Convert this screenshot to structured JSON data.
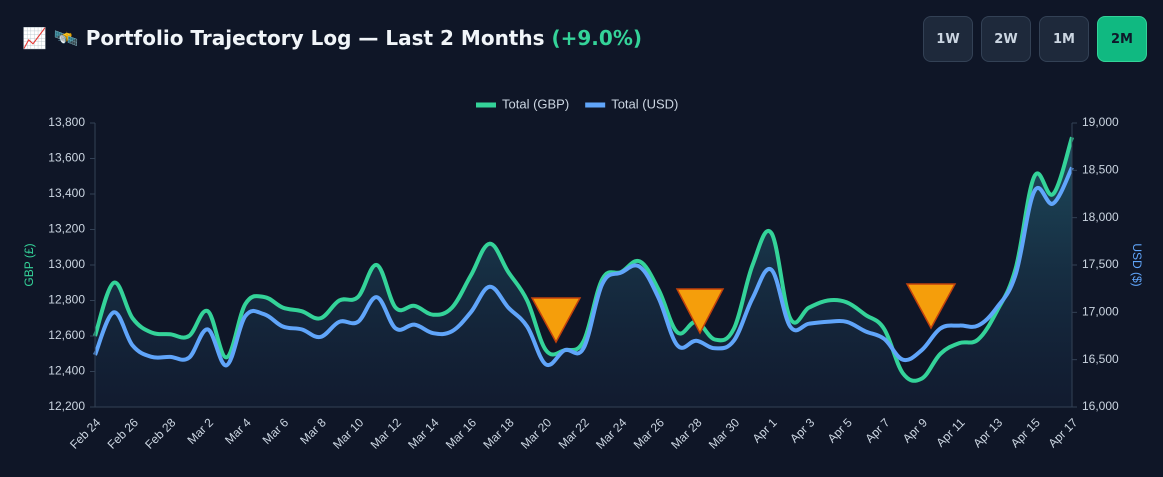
{
  "header": {
    "title": "📈 🛰️ Portfolio Trajectory Log — Last 2 Months",
    "change": "(+9.0%)",
    "ranges": [
      "1W",
      "2W",
      "1M",
      "2M"
    ],
    "active": "2M"
  },
  "chart_data": {
    "type": "line",
    "categories": [
      "Feb 24",
      null,
      "Feb 26",
      null,
      "Feb 28",
      null,
      "Mar 2",
      null,
      "Mar 4",
      null,
      "Mar 6",
      null,
      "Mar 8",
      null,
      "Mar 10",
      null,
      "Mar 12",
      null,
      "Mar 14",
      null,
      "Mar 16",
      null,
      "Mar 18",
      null,
      "Mar 20",
      null,
      "Mar 22",
      null,
      "Mar 24",
      null,
      "Mar 26",
      null,
      "Mar 28",
      null,
      "Mar 30",
      null,
      "Apr 1",
      null,
      "Apr 3",
      null,
      "Apr 5",
      null,
      "Apr 7",
      null,
      "Apr 9",
      null,
      "Apr 11",
      null,
      "Apr 13",
      null,
      "Apr 15",
      null,
      "Apr 17"
    ],
    "ylabel": "GBP (£)",
    "y2label": "USD ($)",
    "ylim": [
      12200,
      13800
    ],
    "yticks": [
      {
        "value": 12200,
        "label": "12,200"
      },
      {
        "value": 12400,
        "label": "12,400"
      },
      {
        "value": 12600,
        "label": "12,600"
      },
      {
        "value": 12800,
        "label": "12,800"
      },
      {
        "value": 13000,
        "label": "13,000"
      },
      {
        "value": 13200,
        "label": "13,200"
      },
      {
        "value": 13400,
        "label": "13,400"
      },
      {
        "value": 13600,
        "label": "13,600"
      },
      {
        "value": 13800,
        "label": "13,800"
      }
    ],
    "y2lim": [
      16000,
      19000
    ],
    "y2ticks": [
      {
        "value": 16000,
        "label": "16,000"
      },
      {
        "value": 16500,
        "label": "16,500"
      },
      {
        "value": 17000,
        "label": "17,000"
      },
      {
        "value": 17500,
        "label": "17,500"
      },
      {
        "value": 18000,
        "label": "18,000"
      },
      {
        "value": 18500,
        "label": "18,500"
      },
      {
        "value": 19000,
        "label": "19,000"
      }
    ],
    "series": [
      {
        "name": "Total (GBP)",
        "color": "#34d399",
        "fill": true,
        "values": [
          12600,
          12900,
          12700,
          12620,
          12610,
          12600,
          12740,
          12480,
          12780,
          12820,
          12760,
          12740,
          12700,
          12800,
          12820,
          13000,
          12760,
          12770,
          12720,
          12760,
          12940,
          13120,
          12960,
          12800,
          12520,
          12520,
          12570,
          12920,
          12960,
          13020,
          12860,
          12620,
          12680,
          12580,
          12640,
          13000,
          13180,
          12700,
          12760,
          12800,
          12790,
          12720,
          12640,
          12390,
          12360,
          12500,
          12560,
          12580,
          12740,
          12980,
          13500,
          13400,
          13720
        ]
      },
      {
        "name": "Total (USD)",
        "color": "#60a5fa",
        "axis": "y2",
        "values": [
          16550,
          17000,
          16650,
          16530,
          16530,
          16520,
          16820,
          16440,
          16960,
          16980,
          16850,
          16820,
          16740,
          16900,
          16900,
          17160,
          16830,
          16870,
          16780,
          16800,
          17000,
          17270,
          17050,
          16850,
          16450,
          16600,
          16620,
          17300,
          17420,
          17480,
          17150,
          16650,
          16700,
          16620,
          16700,
          17150,
          17450,
          16850,
          16880,
          16900,
          16900,
          16800,
          16720,
          16500,
          16600,
          16830,
          16860,
          16860,
          17050,
          17400,
          18280,
          18150,
          18530
        ]
      }
    ]
  }
}
